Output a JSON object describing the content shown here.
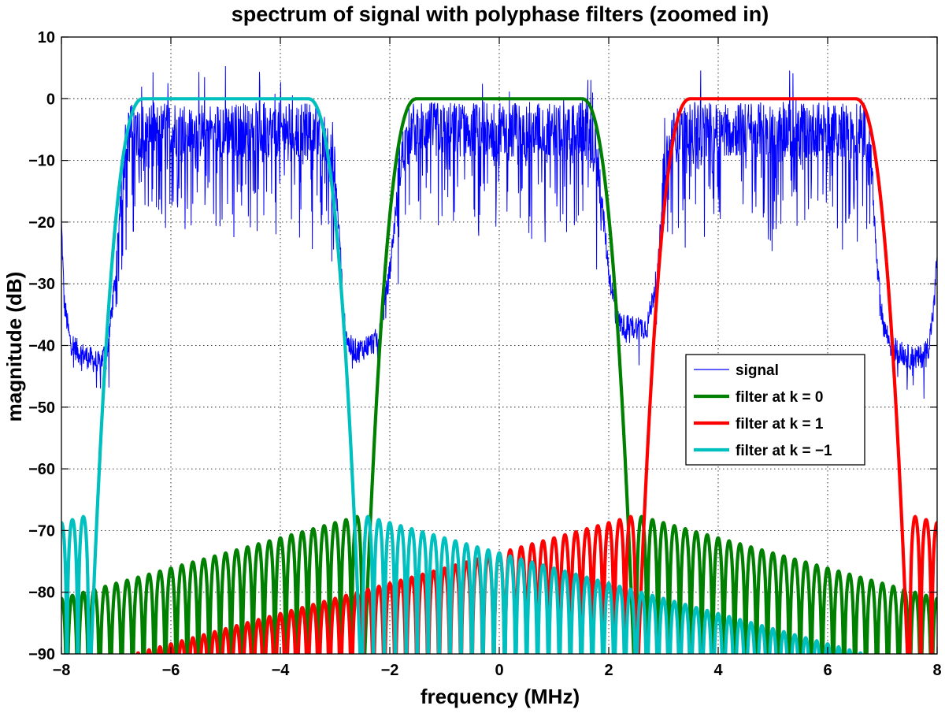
{
  "chart_data": {
    "type": "line",
    "title": "spectrum of signal with polyphase filters (zoomed in)",
    "xlabel": "frequency (MHz)",
    "ylabel": "magnitude (dB)",
    "xlim": [
      -8,
      8
    ],
    "ylim": [
      -90,
      10
    ],
    "x_ticks": [
      -8,
      -6,
      -4,
      -2,
      0,
      2,
      4,
      6,
      8
    ],
    "y_ticks": [
      10,
      0,
      -10,
      -20,
      -30,
      -40,
      -50,
      -60,
      -70,
      -80,
      -90
    ],
    "x_tick_labels": [
      "−8",
      "−6",
      "−4",
      "−2",
      "0",
      "2",
      "4",
      "6",
      "8"
    ],
    "y_tick_labels": [
      "10",
      "0",
      "−10",
      "−20",
      "−30",
      "−40",
      "−50",
      "−60",
      "−70",
      "−80",
      "−90"
    ],
    "grid": true,
    "legend_position": "right",
    "series": [
      {
        "name": "signal",
        "color": "#0000ff",
        "style": "noisy",
        "x": [
          -8,
          -7.95,
          -7.85,
          -7.7,
          -7.5,
          -7.3,
          -7.15,
          -7.0,
          -6.9,
          -6.8,
          -6.7,
          -6.5,
          -3.5,
          -3.2,
          -3.0,
          -2.9,
          -2.85,
          -2.75,
          -2.6,
          -2.4,
          -2.2,
          -2.0,
          -1.8,
          -1.6,
          -1.5,
          1.5,
          1.6,
          1.8,
          2.0,
          2.15,
          2.3,
          2.5,
          2.7,
          2.9,
          3.0,
          3.2,
          3.5,
          6.5,
          6.7,
          6.8,
          6.9,
          7.0,
          7.15,
          7.3,
          7.5,
          7.7,
          7.85,
          7.95,
          8.0
        ],
        "y": [
          -20,
          -33,
          -39,
          -41,
          -42,
          -43,
          -40,
          -28,
          -13,
          -6,
          -5,
          -5,
          -5,
          -6,
          -12,
          -25,
          -35,
          -40,
          -41,
          -40,
          -39,
          -28,
          -10,
          -5,
          -5,
          -5,
          -5,
          -10,
          -28,
          -36,
          -37,
          -37,
          -37,
          -28,
          -12,
          -6,
          -5,
          -5,
          -5,
          -11,
          -27,
          -36,
          -40,
          -41,
          -42,
          -42,
          -40,
          -33,
          -25
        ]
      },
      {
        "name": "filter at k = 0",
        "color": "#008000",
        "center": 0,
        "passband_edges": [
          -1.5,
          1.5
        ],
        "mainlobe_nulls": [
          -2.5,
          2.5
        ],
        "passband_level": 0,
        "first_sidelobe": -67.5,
        "sidelobe_at_8MHz_distance": -81
      },
      {
        "name": "filter at k = 1",
        "color": "#ff0000",
        "center": 5,
        "passband_edges": [
          3.5,
          6.5
        ],
        "mainlobe_nulls": [
          2.5,
          7.5
        ],
        "passband_level": 0,
        "first_sidelobe": -67.5,
        "sidelobe_at_8MHz_distance": -81
      },
      {
        "name": "filter at k = −1",
        "color": "#00bfbf",
        "center": -5,
        "passband_edges": [
          -6.5,
          -3.5
        ],
        "mainlobe_nulls": [
          -7.5,
          -2.5
        ],
        "passband_level": 0,
        "first_sidelobe": -67.5,
        "sidelobe_at_8MHz_distance": -81
      }
    ]
  }
}
